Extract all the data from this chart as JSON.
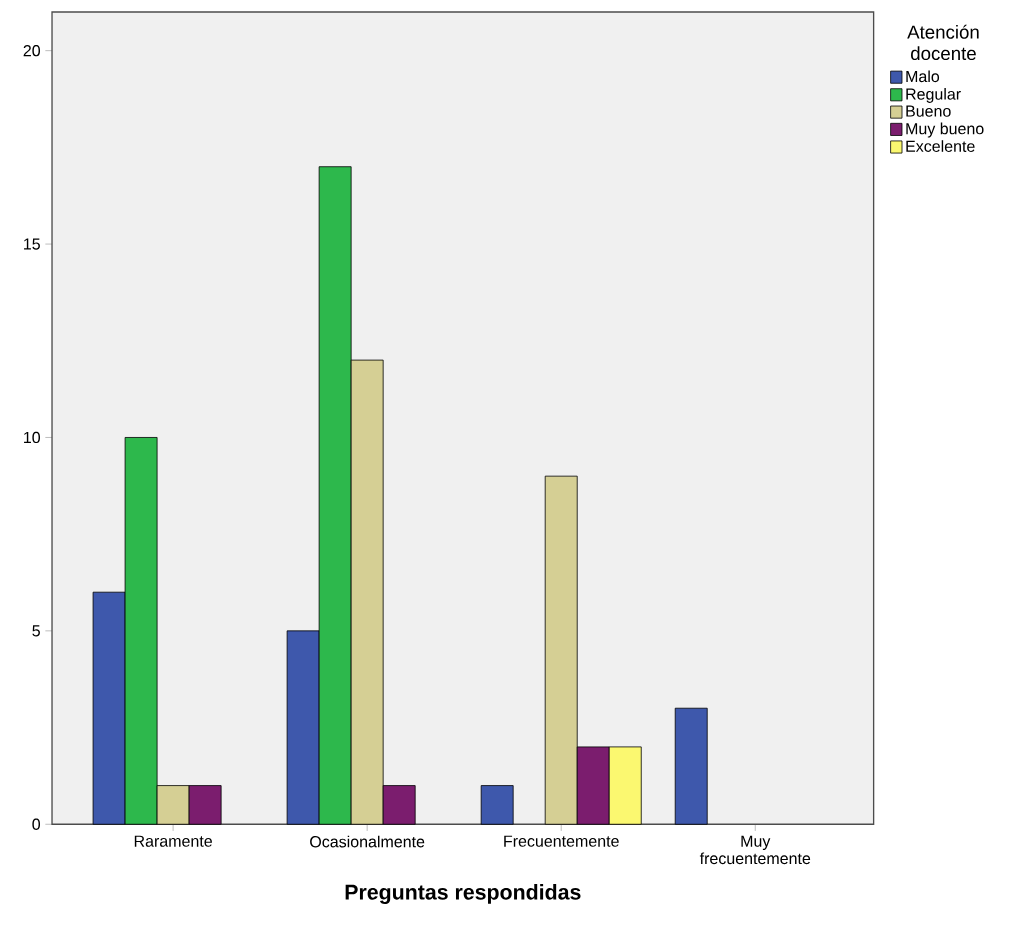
{
  "chart_data": {
    "type": "bar",
    "xlabel": "Preguntas respondidas",
    "legend_title": "Atención docente",
    "categories": [
      "Raramente",
      "Ocasionalmente",
      "Frecuentemente",
      "Muy frecuentemente"
    ],
    "series": [
      {
        "name": "Malo",
        "color": "#3e58ac",
        "values": [
          6,
          5,
          1,
          3
        ]
      },
      {
        "name": "Regular",
        "color": "#2db84c",
        "values": [
          10,
          17,
          null,
          null
        ]
      },
      {
        "name": "Bueno",
        "color": "#d5cf94",
        "values": [
          1,
          12,
          9,
          null
        ]
      },
      {
        "name": "Muy bueno",
        "color": "#7b1d6e",
        "values": [
          1,
          1,
          2,
          null
        ]
      },
      {
        "name": "Excelente",
        "color": "#fbf870",
        "values": [
          null,
          null,
          2,
          null
        ]
      }
    ],
    "ylim": [
      0,
      21
    ],
    "yticks": [
      0,
      5,
      10,
      15,
      20
    ],
    "grid": false,
    "legend": "top right"
  }
}
